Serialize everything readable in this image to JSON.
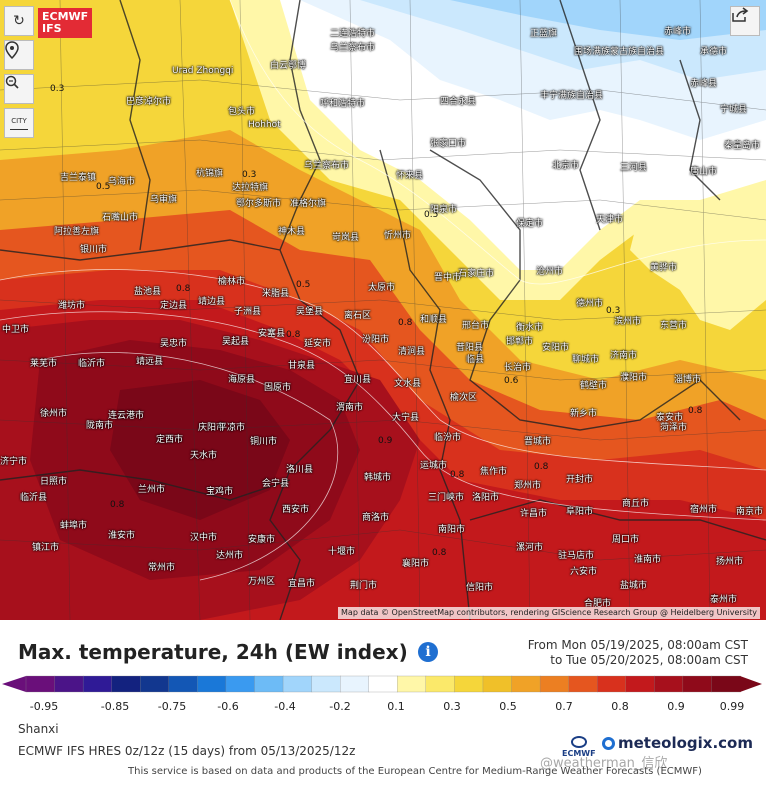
{
  "map": {
    "controls": {
      "reload_icon": "↻",
      "locate_icon": "⚲",
      "zoom_icon": "⊖",
      "city_toggle_label": "CITY"
    },
    "logo": {
      "line1": "ECMWF",
      "line2": "IFS"
    },
    "attribution": "Map data © OpenStreetMap contributors, rendering GIScience Research Group @ Heidelberg University",
    "contour_labels": [
      "0.3",
      "0.5",
      "0.3",
      "0.8",
      "0.5",
      "0.8",
      "0.5",
      "0.8",
      "0.6",
      "0.8",
      "0.9",
      "0.8",
      "0.8",
      "0.8",
      "0.3",
      "0.8"
    ],
    "city_labels": [
      "二连浩特市",
      "正蓝旗",
      "赤峰市",
      "乌兰察布市",
      "围场满族蒙古族自治县",
      "承德市",
      "白云鄂博",
      "赤峰县",
      "Urad Zhongqi",
      "巴彦淖尔市",
      "呼和浩特市",
      "丰宁满族自治县",
      "四合永县",
      "包头市",
      "Hohhot",
      "张家口市",
      "宁城县",
      "杭锦旗",
      "达拉特旗",
      "乌兰察布市",
      "怀来县",
      "北京市",
      "三河县",
      "唐山市",
      "秦皇岛市",
      "鄂尔多斯市",
      "准格尔旗",
      "吉兰泰镇",
      "乌海市",
      "石嘴山市",
      "阿拉善左旗",
      "银川市",
      "神木县",
      "岢岚县",
      "忻州市",
      "阳泉市",
      "石家庄市",
      "保定市",
      "天津市",
      "沧州市",
      "黄骅市",
      "乌审旗",
      "榆林市",
      "米脂县",
      "太原市",
      "晋中市",
      "和顺县",
      "邢台市",
      "衡水市",
      "德州市",
      "滨州市",
      "东营市",
      "盐池县",
      "定边县",
      "靖边县",
      "子洲县",
      "吴堡县",
      "离石区",
      "汾阳市",
      "昔阳县",
      "邯郸市",
      "聊城市",
      "济南市",
      "淄博市",
      "潍坊市",
      "中卫市",
      "吴忠市",
      "吴起县",
      "安塞县",
      "延安市",
      "清涧县",
      "临县",
      "文水县",
      "榆次区",
      "长治市",
      "安阳市",
      "鹤壁市",
      "濮阳市",
      "泰安市",
      "莱芜市",
      "临沂市",
      "靖远县",
      "海原县",
      "固原市",
      "甘泉县",
      "宜川县",
      "大宁县",
      "临汾市",
      "晋城市",
      "新乡市",
      "菏泽市",
      "济宁市",
      "日照市",
      "兰州市",
      "会宁县",
      "庆阳市",
      "洛川县",
      "韩城市",
      "运城市",
      "焦作市",
      "郑州市",
      "开封市",
      "商丘市",
      "徐州市",
      "连云港市",
      "定西市",
      "天水市",
      "平凉市",
      "铜川市",
      "渭南市",
      "三门峡市",
      "洛阳市",
      "许昌市",
      "周口市",
      "宿州市",
      "临沂县",
      "陇南市",
      "宝鸡市",
      "西安市",
      "商洛市",
      "南阳市",
      "漯河市",
      "驻马店市",
      "阜阳市",
      "淮南市",
      "蚌埠市",
      "淮安市",
      "汉中市",
      "安康市",
      "十堰市",
      "襄阳市",
      "信阳市",
      "六安市",
      "合肥市",
      "盐城市",
      "扬州市",
      "泰州市",
      "南京市",
      "镇江市",
      "常州市",
      "达州市",
      "万州区",
      "宜昌市",
      "荆门市",
      "孝感市",
      "武汉市"
    ]
  },
  "header": {
    "title": "Max. temperature, 24h (EW index)",
    "info_icon": "i",
    "date_from": "From Mon 05/19/2025, 08:00am CST",
    "date_to": "to Tue 05/20/2025, 08:00am CST"
  },
  "legend": {
    "colors": [
      "#6a0f7a",
      "#4b1488",
      "#2f1a96",
      "#13227f",
      "#12378f",
      "#1357b5",
      "#1a78d8",
      "#3a9af0",
      "#6dbbf6",
      "#a1d5fb",
      "#cbe8fd",
      "#e8f4fe",
      "#ffffff",
      "#fff7a8",
      "#fbe96a",
      "#f5d63a",
      "#f0c029",
      "#f0a227",
      "#ec7f22",
      "#e5561f",
      "#d8311d",
      "#c3191c",
      "#a7101c",
      "#8f0a1a",
      "#7a0718"
    ],
    "ticks": [
      "-0.95",
      "-0.85",
      "-0.75",
      "-0.6",
      "-0.4",
      "-0.2",
      "0.1",
      "0.3",
      "0.5",
      "0.7",
      "0.8",
      "0.9",
      "0.99"
    ]
  },
  "footer": {
    "region": "Shanxi",
    "model": "ECMWF IFS HRES 0z/12z  (15 days)  from 05/13/2025/12z",
    "disclaimer": "This service is based on data and products of the European Centre for Medium-Range Weather Forecasts (ECMWF)",
    "brand": "meteologix.com",
    "ecmwf_small": "ECMWF",
    "watermark": "@weatherman_信欣"
  }
}
